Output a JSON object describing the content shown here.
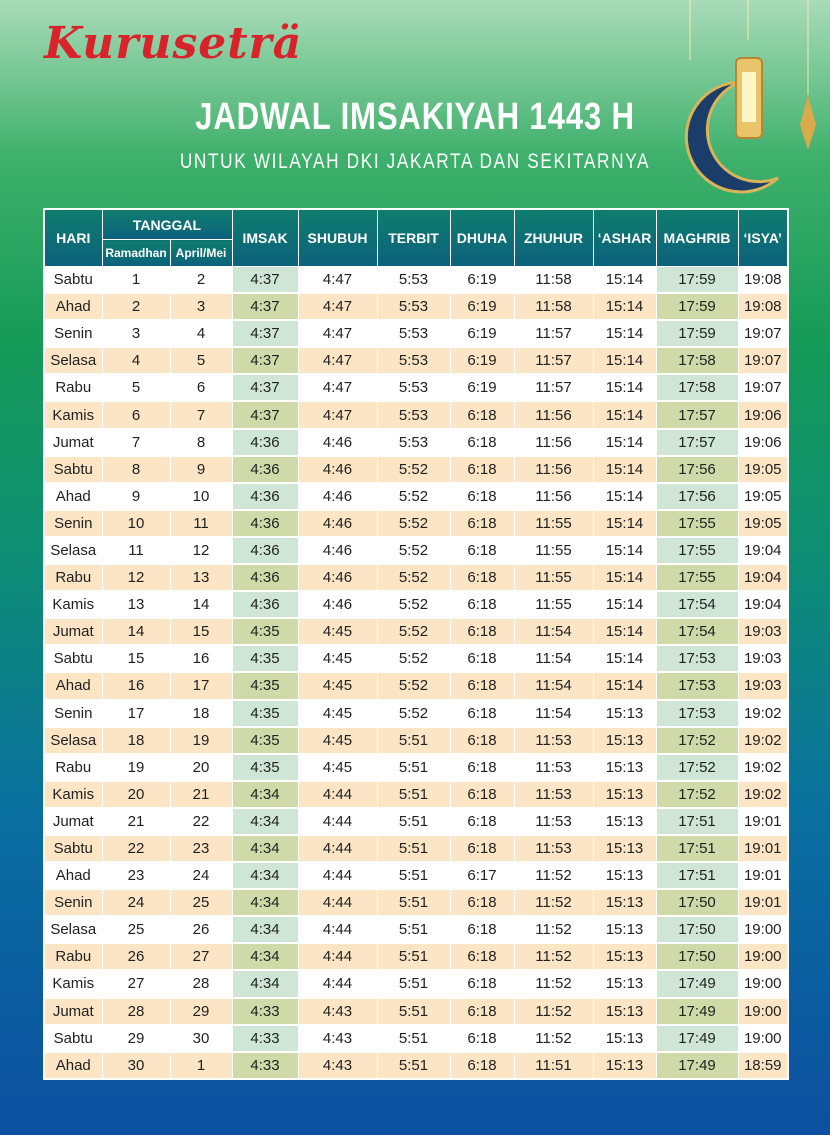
{
  "header": {
    "logo": "Kuruseträ",
    "title": "JADWAL IMSAKIYAH 1443 H",
    "subtitle": "UNTUK WILAYAH DKI JAKARTA DAN SEKITARNYA"
  },
  "table": {
    "group_header": "TANGGAL",
    "columns": [
      "HARI",
      "Ramadhan",
      "April/Mei",
      "IMSAK",
      "SHUBUH",
      "TERBIT",
      "DHUHA",
      "ZHUHUR",
      "‘ASHAR",
      "MAGHRIB",
      "‘ISYA’"
    ],
    "rows": [
      [
        "Sabtu",
        "1",
        "2",
        "4:37",
        "4:47",
        "5:53",
        "6:19",
        "11:58",
        "15:14",
        "17:59",
        "19:08"
      ],
      [
        "Ahad",
        "2",
        "3",
        "4:37",
        "4:47",
        "5:53",
        "6:19",
        "11:58",
        "15:14",
        "17:59",
        "19:08"
      ],
      [
        "Senin",
        "3",
        "4",
        "4:37",
        "4:47",
        "5:53",
        "6:19",
        "11:57",
        "15:14",
        "17:59",
        "19:07"
      ],
      [
        "Selasa",
        "4",
        "5",
        "4:37",
        "4:47",
        "5:53",
        "6:19",
        "11:57",
        "15:14",
        "17:58",
        "19:07"
      ],
      [
        "Rabu",
        "5",
        "6",
        "4:37",
        "4:47",
        "5:53",
        "6:19",
        "11:57",
        "15:14",
        "17:58",
        "19:07"
      ],
      [
        "Kamis",
        "6",
        "7",
        "4:37",
        "4:47",
        "5:53",
        "6:18",
        "11:56",
        "15:14",
        "17:57",
        "19:06"
      ],
      [
        "Jumat",
        "7",
        "8",
        "4:36",
        "4:46",
        "5:53",
        "6:18",
        "11:56",
        "15:14",
        "17:57",
        "19:06"
      ],
      [
        "Sabtu",
        "8",
        "9",
        "4:36",
        "4:46",
        "5:52",
        "6:18",
        "11:56",
        "15:14",
        "17:56",
        "19:05"
      ],
      [
        "Ahad",
        "9",
        "10",
        "4:36",
        "4:46",
        "5:52",
        "6:18",
        "11:56",
        "15:14",
        "17:56",
        "19:05"
      ],
      [
        "Senin",
        "10",
        "11",
        "4:36",
        "4:46",
        "5:52",
        "6:18",
        "11:55",
        "15:14",
        "17:55",
        "19:05"
      ],
      [
        "Selasa",
        "11",
        "12",
        "4:36",
        "4:46",
        "5:52",
        "6:18",
        "11:55",
        "15:14",
        "17:55",
        "19:04"
      ],
      [
        "Rabu",
        "12",
        "13",
        "4:36",
        "4:46",
        "5:52",
        "6:18",
        "11:55",
        "15:14",
        "17:55",
        "19:04"
      ],
      [
        "Kamis",
        "13",
        "14",
        "4:36",
        "4:46",
        "5:52",
        "6:18",
        "11:55",
        "15:14",
        "17:54",
        "19:04"
      ],
      [
        "Jumat",
        "14",
        "15",
        "4:35",
        "4:45",
        "5:52",
        "6:18",
        "11:54",
        "15:14",
        "17:54",
        "19:03"
      ],
      [
        "Sabtu",
        "15",
        "16",
        "4:35",
        "4:45",
        "5:52",
        "6:18",
        "11:54",
        "15:14",
        "17:53",
        "19:03"
      ],
      [
        "Ahad",
        "16",
        "17",
        "4:35",
        "4:45",
        "5:52",
        "6:18",
        "11:54",
        "15:14",
        "17:53",
        "19:03"
      ],
      [
        "Senin",
        "17",
        "18",
        "4:35",
        "4:45",
        "5:52",
        "6:18",
        "11:54",
        "15:13",
        "17:53",
        "19:02"
      ],
      [
        "Selasa",
        "18",
        "19",
        "4:35",
        "4:45",
        "5:51",
        "6:18",
        "11:53",
        "15:13",
        "17:52",
        "19:02"
      ],
      [
        "Rabu",
        "19",
        "20",
        "4:35",
        "4:45",
        "5:51",
        "6:18",
        "11:53",
        "15:13",
        "17:52",
        "19:02"
      ],
      [
        "Kamis",
        "20",
        "21",
        "4:34",
        "4:44",
        "5:51",
        "6:18",
        "11:53",
        "15:13",
        "17:52",
        "19:02"
      ],
      [
        "Jumat",
        "21",
        "22",
        "4:34",
        "4:44",
        "5:51",
        "6:18",
        "11:53",
        "15:13",
        "17:51",
        "19:01"
      ],
      [
        "Sabtu",
        "22",
        "23",
        "4:34",
        "4:44",
        "5:51",
        "6:18",
        "11:53",
        "15:13",
        "17:51",
        "19:01"
      ],
      [
        "Ahad",
        "23",
        "24",
        "4:34",
        "4:44",
        "5:51",
        "6:17",
        "11:52",
        "15:13",
        "17:51",
        "19:01"
      ],
      [
        "Senin",
        "24",
        "25",
        "4:34",
        "4:44",
        "5:51",
        "6:18",
        "11:52",
        "15:13",
        "17:50",
        "19:01"
      ],
      [
        "Selasa",
        "25",
        "26",
        "4:34",
        "4:44",
        "5:51",
        "6:18",
        "11:52",
        "15:13",
        "17:50",
        "19:00"
      ],
      [
        "Rabu",
        "26",
        "27",
        "4:34",
        "4:44",
        "5:51",
        "6:18",
        "11:52",
        "15:13",
        "17:50",
        "19:00"
      ],
      [
        "Kamis",
        "27",
        "28",
        "4:34",
        "4:44",
        "5:51",
        "6:18",
        "11:52",
        "15:13",
        "17:49",
        "19:00"
      ],
      [
        "Jumat",
        "28",
        "29",
        "4:33",
        "4:43",
        "5:51",
        "6:18",
        "11:52",
        "15:13",
        "17:49",
        "19:00"
      ],
      [
        "Sabtu",
        "29",
        "30",
        "4:33",
        "4:43",
        "5:51",
        "6:18",
        "11:52",
        "15:13",
        "17:49",
        "19:00"
      ],
      [
        "Ahad",
        "30",
        "1",
        "4:33",
        "4:43",
        "5:51",
        "6:18",
        "11:51",
        "15:13",
        "17:49",
        "18:59"
      ]
    ]
  }
}
